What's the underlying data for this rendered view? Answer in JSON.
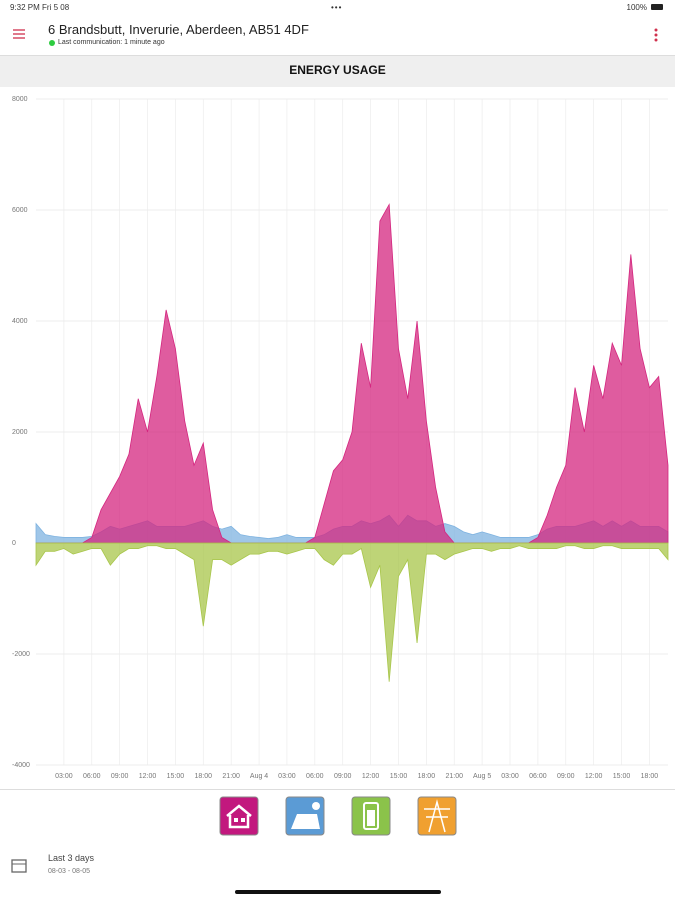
{
  "status": {
    "time": "9:32 PM  Fri 5 08",
    "battery": "100%"
  },
  "header": {
    "title": "6 Brandsbutt, Inverurie, Aberdeen, AB51 4DF",
    "subtitle": "Last communication: 1 minute ago"
  },
  "section_title": "ENERGY USAGE",
  "footer": {
    "range": "Last 3 days",
    "dates": "08-03 - 08-05"
  },
  "chart_data": {
    "type": "area",
    "x": [
      0,
      1,
      2,
      3,
      4,
      5,
      6,
      7,
      8,
      9,
      10,
      11,
      12,
      13,
      14,
      15,
      16,
      17,
      18,
      19,
      20,
      21,
      22,
      23,
      24,
      25,
      26,
      27,
      28,
      29,
      30,
      31,
      32,
      33,
      34,
      35,
      36,
      37,
      38,
      39,
      40,
      41,
      42,
      43,
      44,
      45,
      46,
      47,
      48,
      49,
      50,
      51,
      52,
      53,
      54,
      55,
      56,
      57,
      58,
      59,
      60,
      61,
      62,
      63,
      64,
      65,
      66,
      67,
      68
    ],
    "xlim": [
      0,
      68
    ],
    "xticks": [
      {
        "value": 3,
        "label": "03:00"
      },
      {
        "value": 6,
        "label": "06:00"
      },
      {
        "value": 9,
        "label": "09:00"
      },
      {
        "value": 12,
        "label": "12:00"
      },
      {
        "value": 15,
        "label": "15:00"
      },
      {
        "value": 18,
        "label": "18:00"
      },
      {
        "value": 21,
        "label": "21:00"
      },
      {
        "value": 24,
        "label": "Aug 4"
      },
      {
        "value": 27,
        "label": "03:00"
      },
      {
        "value": 30,
        "label": "06:00"
      },
      {
        "value": 33,
        "label": "09:00"
      },
      {
        "value": 36,
        "label": "12:00"
      },
      {
        "value": 39,
        "label": "15:00"
      },
      {
        "value": 42,
        "label": "18:00"
      },
      {
        "value": 45,
        "label": "21:00"
      },
      {
        "value": 48,
        "label": "Aug 5"
      },
      {
        "value": 51,
        "label": "03:00"
      },
      {
        "value": 54,
        "label": "06:00"
      },
      {
        "value": 57,
        "label": "09:00"
      },
      {
        "value": 60,
        "label": "12:00"
      },
      {
        "value": 63,
        "label": "15:00"
      },
      {
        "value": 66,
        "label": "18:00"
      }
    ],
    "ylim": [
      -4000,
      8000
    ],
    "yticks": [
      -4000,
      -2000,
      0,
      2000,
      4000,
      6000,
      8000
    ],
    "grid": true,
    "series": [
      {
        "color": "#7fb3e0",
        "values": [
          350,
          150,
          120,
          100,
          100,
          100,
          120,
          200,
          300,
          250,
          300,
          350,
          400,
          300,
          300,
          300,
          300,
          350,
          400,
          300,
          250,
          300,
          150,
          120,
          100,
          80,
          100,
          150,
          100,
          100,
          100,
          150,
          250,
          300,
          300,
          400,
          350,
          400,
          500,
          300,
          500,
          400,
          400,
          300,
          350,
          300,
          200,
          150,
          200,
          150,
          100,
          100,
          100,
          100,
          150,
          250,
          300,
          300,
          300,
          350,
          400,
          300,
          400,
          300,
          400,
          300,
          300,
          300,
          200
        ]
      },
      {
        "color": "#d4267f",
        "values": [
          0,
          0,
          0,
          0,
          0,
          0,
          100,
          600,
          900,
          1200,
          1600,
          2600,
          2000,
          3000,
          4200,
          3500,
          2200,
          1400,
          1800,
          600,
          100,
          0,
          0,
          0,
          0,
          0,
          0,
          0,
          0,
          0,
          100,
          700,
          1300,
          1500,
          2000,
          3600,
          2800,
          5800,
          6100,
          3500,
          2600,
          4000,
          2200,
          1000,
          200,
          0,
          0,
          0,
          0,
          0,
          0,
          0,
          0,
          0,
          100,
          500,
          1000,
          1400,
          2800,
          2000,
          3200,
          2600,
          3600,
          3200,
          5200,
          3500,
          2800,
          3000,
          1400
        ]
      },
      {
        "color": "#a8c64a",
        "values": [
          -400,
          -150,
          -150,
          -100,
          -200,
          -150,
          -100,
          -100,
          -400,
          -200,
          -100,
          -100,
          -50,
          -50,
          -100,
          -100,
          -200,
          -300,
          -1500,
          -300,
          -300,
          -400,
          -300,
          -200,
          -200,
          -150,
          -150,
          -200,
          -150,
          -100,
          -100,
          -300,
          -400,
          -200,
          -200,
          -100,
          -800,
          -400,
          -2500,
          -600,
          -300,
          -1800,
          -200,
          -200,
          -300,
          -200,
          -150,
          -100,
          -100,
          -150,
          -100,
          -100,
          -50,
          -100,
          -100,
          -100,
          -100,
          -50,
          -50,
          -100,
          -100,
          -50,
          -50,
          -100,
          -100,
          -100,
          -100,
          -100,
          -300
        ]
      }
    ]
  }
}
